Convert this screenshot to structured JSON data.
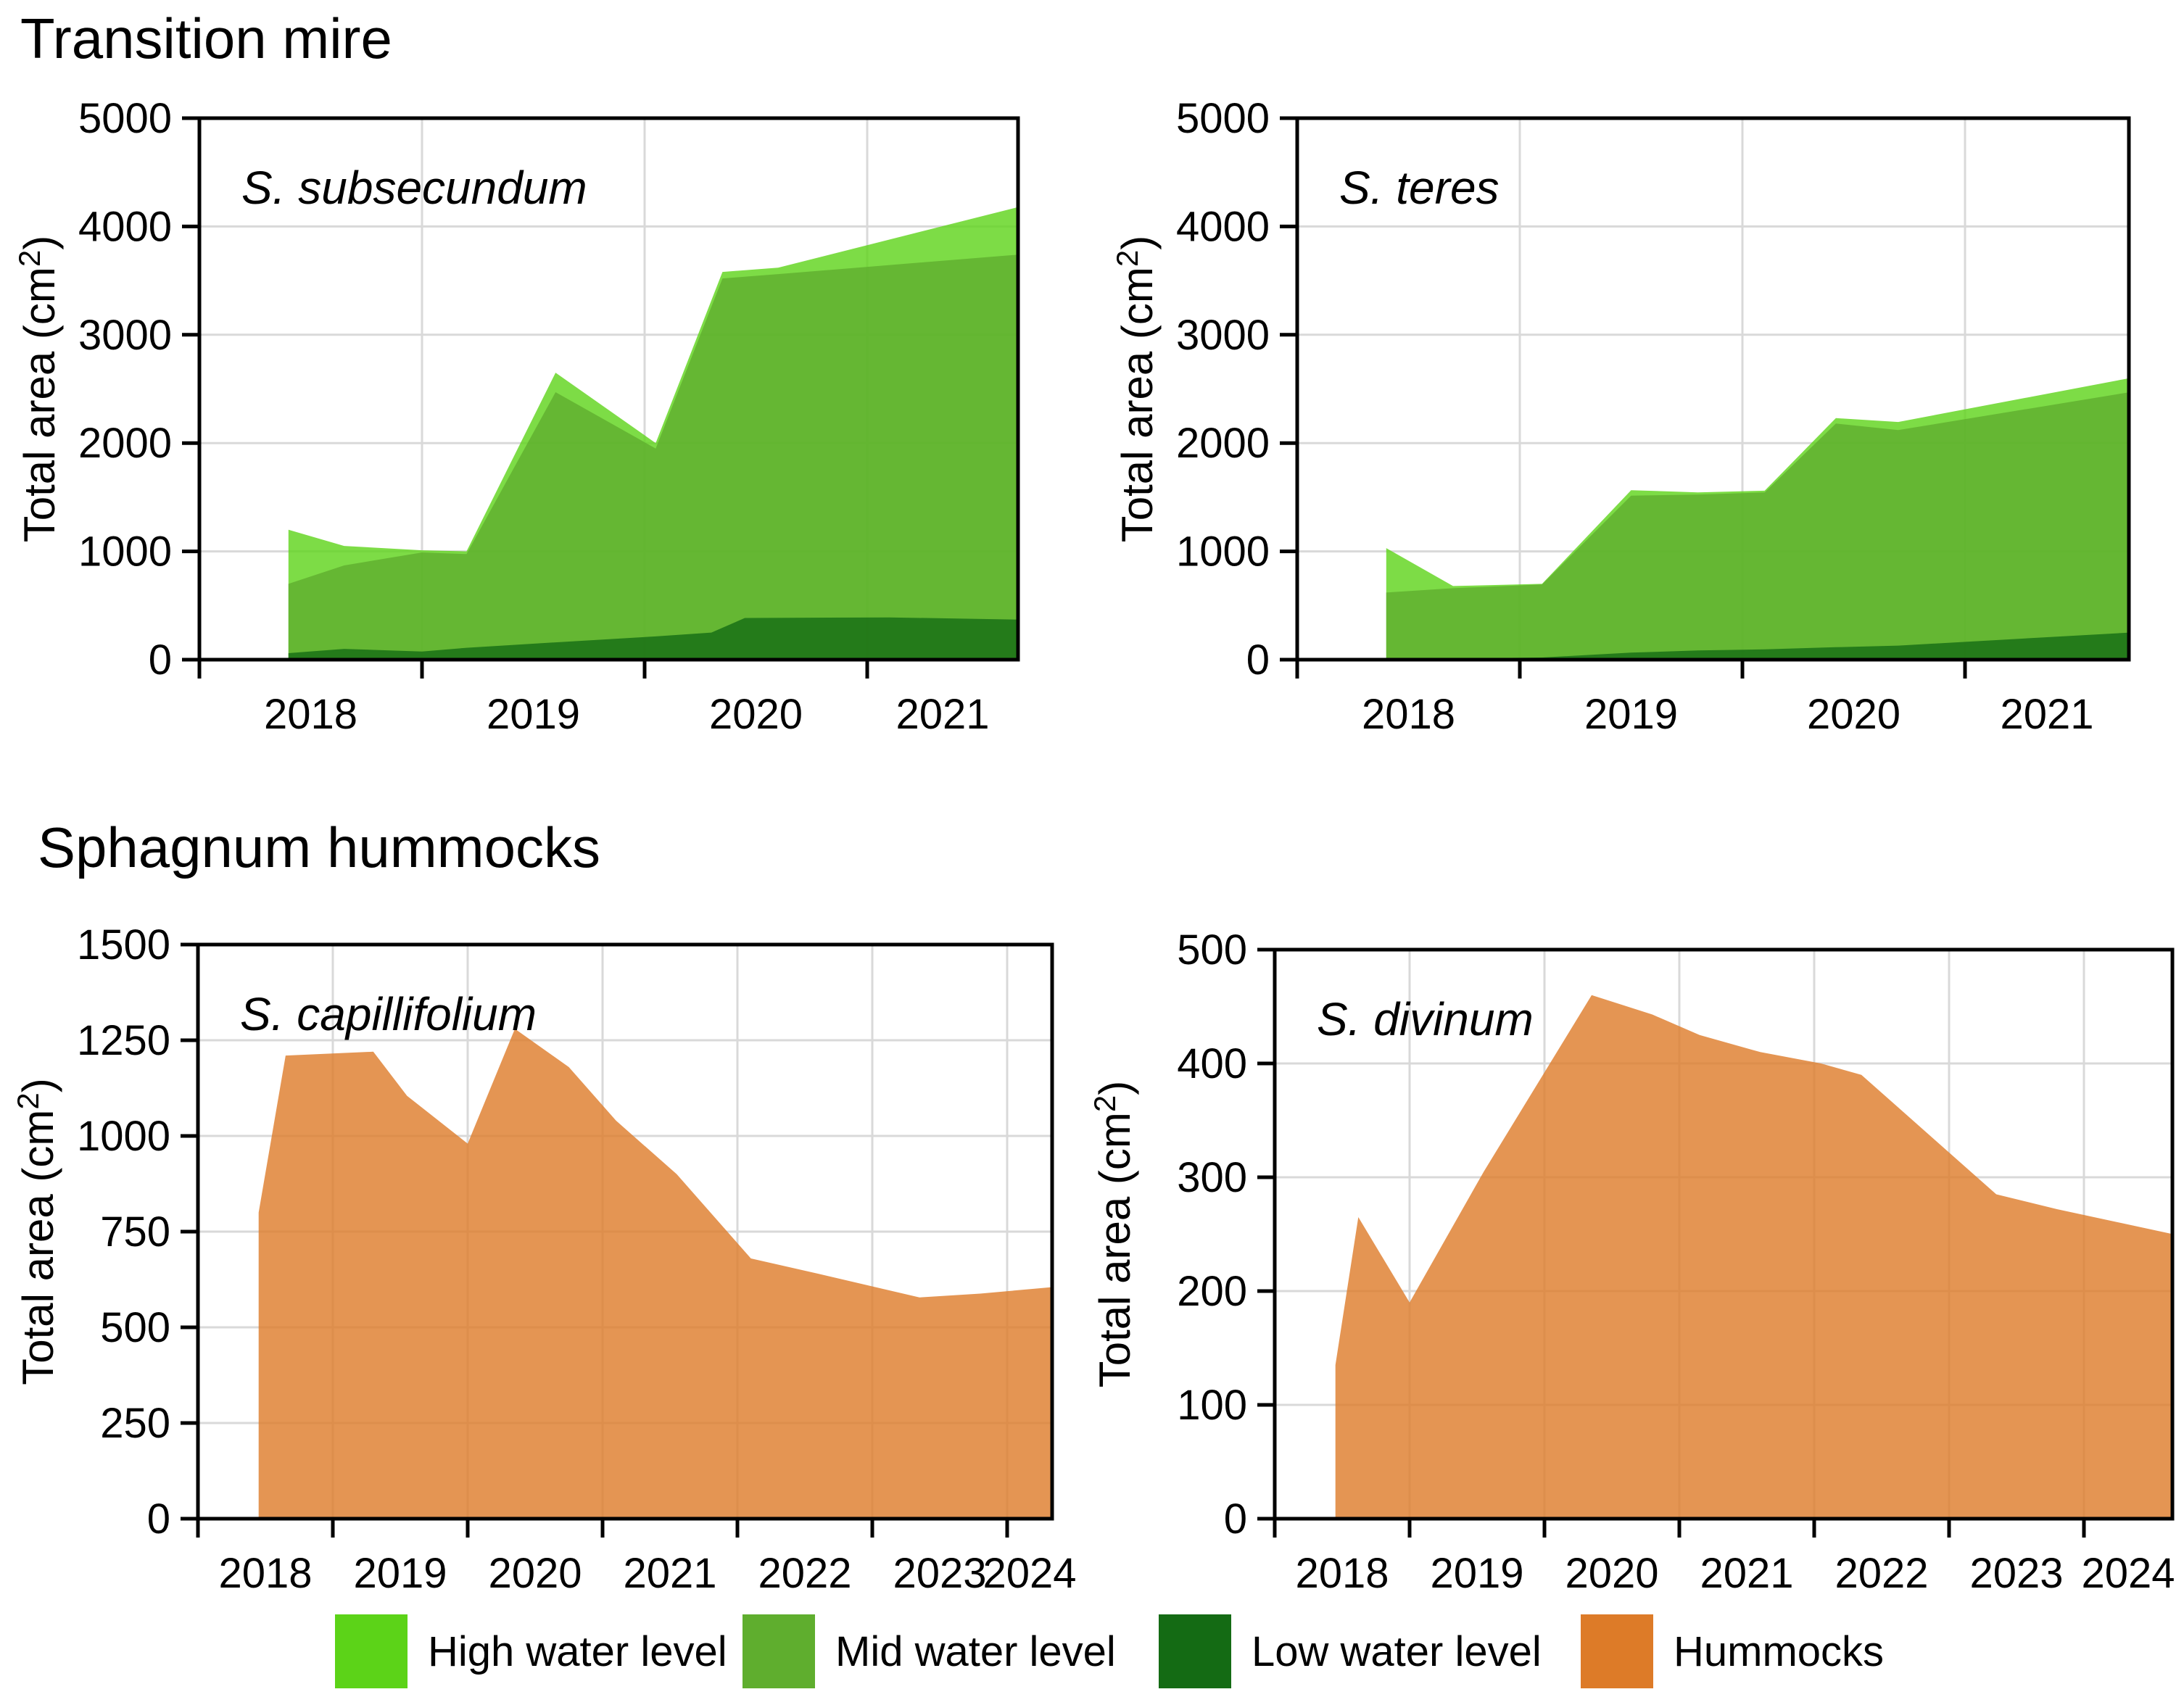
{
  "figure": {
    "background": "#ffffff",
    "sections": [
      {
        "title": "Transition mire"
      },
      {
        "title": "Sphagnum hummocks"
      }
    ]
  },
  "colors": {
    "high": "#5CD318",
    "mid": "#5FAE2E",
    "low": "#146B14",
    "hummocks": "#DD7B28",
    "gridline": "#D9D9D9",
    "axis": "#000000"
  },
  "axis_title": {
    "pre": "Total area (cm",
    "sup": "2",
    "post": ")"
  },
  "legend": {
    "items": [
      {
        "label": "High water level",
        "color_key": "high"
      },
      {
        "label": "Mid water level",
        "color_key": "mid"
      },
      {
        "label": "Low water level",
        "color_key": "low"
      },
      {
        "label": "Hummocks",
        "color_key": "hummocks"
      }
    ]
  },
  "chart_data": [
    {
      "type": "area",
      "title": "S. subsecundum",
      "section": "Transition mire",
      "ylabel": "Total area (cm2)",
      "ylim": [
        0,
        5000
      ],
      "ytick_step": 1000,
      "grid": true,
      "year_labels": [
        "2018",
        "2019",
        "2020",
        "2021"
      ],
      "x_start_year": 2018,
      "x_end_year": 2021.68,
      "series": [
        {
          "name": "High water level",
          "color_key": "high",
          "points": [
            [
              2018.4,
              1200
            ],
            [
              2018.65,
              1050
            ],
            [
              2019.0,
              1010
            ],
            [
              2019.2,
              1000
            ],
            [
              2019.6,
              2650
            ],
            [
              2020.05,
              2000
            ],
            [
              2020.35,
              3580
            ],
            [
              2020.6,
              3620
            ],
            [
              2021.68,
              4180
            ]
          ]
        },
        {
          "name": "Mid water level",
          "color_key": "mid",
          "points": [
            [
              2018.4,
              700
            ],
            [
              2018.65,
              870
            ],
            [
              2019.0,
              990
            ],
            [
              2019.2,
              975
            ],
            [
              2019.6,
              2470
            ],
            [
              2020.05,
              1950
            ],
            [
              2020.35,
              3520
            ],
            [
              2020.6,
              3560
            ],
            [
              2021.68,
              3740
            ]
          ]
        },
        {
          "name": "Low water level",
          "color_key": "low",
          "points": [
            [
              2018.4,
              60
            ],
            [
              2018.65,
              100
            ],
            [
              2019.0,
              75
            ],
            [
              2019.2,
              110
            ],
            [
              2019.6,
              160
            ],
            [
              2020.05,
              215
            ],
            [
              2020.3,
              250
            ],
            [
              2020.45,
              385
            ],
            [
              2021.1,
              390
            ],
            [
              2021.68,
              370
            ]
          ]
        }
      ]
    },
    {
      "type": "area",
      "title": "S. teres",
      "section": "Transition mire",
      "ylabel": "Total area (cm2)",
      "ylim": [
        0,
        5000
      ],
      "ytick_step": 1000,
      "grid": true,
      "year_labels": [
        "2018",
        "2019",
        "2020",
        "2021"
      ],
      "x_start_year": 2018,
      "x_end_year": 2021.74,
      "series": [
        {
          "name": "High water level",
          "color_key": "high",
          "points": [
            [
              2018.4,
              1030
            ],
            [
              2018.7,
              680
            ],
            [
              2019.1,
              700
            ],
            [
              2019.5,
              1565
            ],
            [
              2019.8,
              1545
            ],
            [
              2020.1,
              1560
            ],
            [
              2020.42,
              2230
            ],
            [
              2020.7,
              2195
            ],
            [
              2021.74,
              2600
            ]
          ]
        },
        {
          "name": "Mid water level",
          "color_key": "mid",
          "points": [
            [
              2018.4,
              620
            ],
            [
              2018.7,
              660
            ],
            [
              2019.1,
              695
            ],
            [
              2019.5,
              1515
            ],
            [
              2019.8,
              1525
            ],
            [
              2020.1,
              1545
            ],
            [
              2020.42,
              2180
            ],
            [
              2020.7,
              2120
            ],
            [
              2021.74,
              2470
            ]
          ]
        },
        {
          "name": "Low water level",
          "color_key": "low",
          "points": [
            [
              2018.4,
              5
            ],
            [
              2018.7,
              10
            ],
            [
              2019.1,
              20
            ],
            [
              2019.5,
              65
            ],
            [
              2019.8,
              85
            ],
            [
              2020.1,
              95
            ],
            [
              2020.42,
              115
            ],
            [
              2020.7,
              130
            ],
            [
              2021.74,
              250
            ]
          ]
        }
      ]
    },
    {
      "type": "area",
      "title": "S. capillifolium",
      "section": "Sphagnum hummocks",
      "ylabel": "Total area (cm2)",
      "ylim": [
        0,
        1500
      ],
      "ytick_step": 250,
      "grid": true,
      "year_labels": [
        "2018",
        "2019",
        "2020",
        "2021",
        "2022",
        "2023",
        "2024"
      ],
      "x_start_year": 2018,
      "x_end_year": 2024.33,
      "series": [
        {
          "name": "Hummocks",
          "color_key": "hummocks",
          "points": [
            [
              2018.45,
              800
            ],
            [
              2018.65,
              1210
            ],
            [
              2019.3,
              1220
            ],
            [
              2019.55,
              1105
            ],
            [
              2020.0,
              980
            ],
            [
              2020.35,
              1280
            ],
            [
              2020.75,
              1180
            ],
            [
              2021.1,
              1040
            ],
            [
              2021.55,
              900
            ],
            [
              2022.1,
              680
            ],
            [
              2022.6,
              640
            ],
            [
              2023.35,
              578
            ],
            [
              2023.8,
              588
            ],
            [
              2024.33,
              605
            ]
          ]
        }
      ]
    },
    {
      "type": "area",
      "title": "S. divinum",
      "section": "Sphagnum hummocks",
      "ylabel": "Total area (cm2)",
      "ylim": [
        0,
        500
      ],
      "ytick_step": 100,
      "grid": true,
      "year_labels": [
        "2018",
        "2019",
        "2020",
        "2021",
        "2022",
        "2023",
        "2024"
      ],
      "x_start_year": 2018,
      "x_end_year": 2024.66,
      "series": [
        {
          "name": "Hummocks",
          "color_key": "hummocks",
          "points": [
            [
              2018.45,
              135
            ],
            [
              2018.62,
              265
            ],
            [
              2019.0,
              190
            ],
            [
              2019.55,
              305
            ],
            [
              2020.35,
              460
            ],
            [
              2020.8,
              443
            ],
            [
              2021.15,
              425
            ],
            [
              2021.6,
              410
            ],
            [
              2022.05,
              400
            ],
            [
              2022.35,
              390
            ],
            [
              2023.35,
              285
            ],
            [
              2023.8,
              272
            ],
            [
              2024.66,
              250
            ]
          ]
        }
      ]
    }
  ]
}
